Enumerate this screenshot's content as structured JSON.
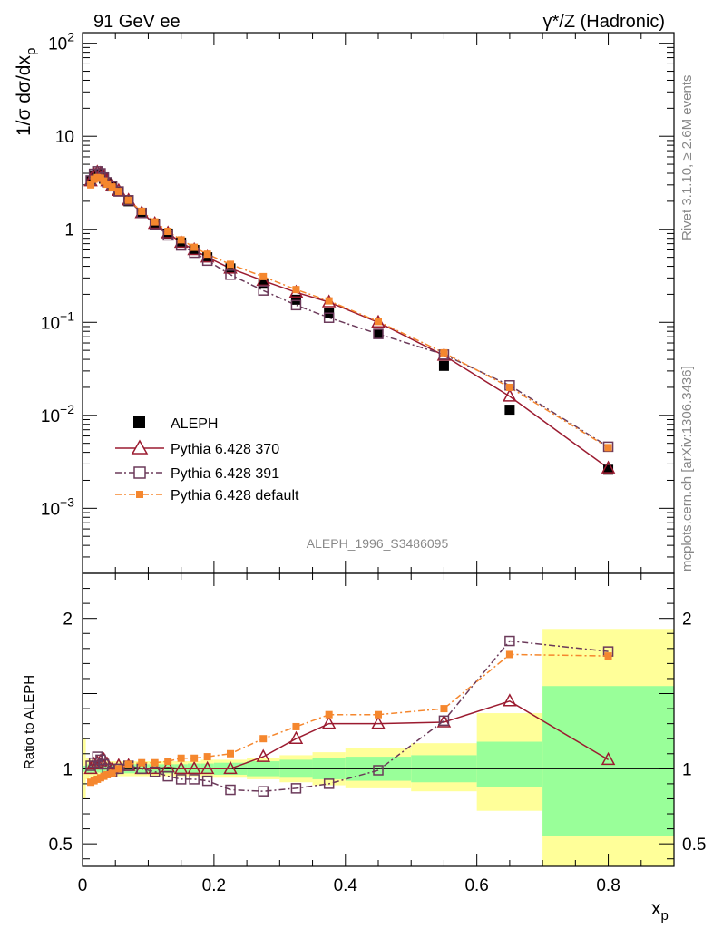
{
  "chart_data": {
    "type": "line",
    "title_left": "91 GeV ee",
    "title_right": "γ*/Z (Hadronic)",
    "side_label_top": "Rivet 3.1.10, ≥ 2.6M events",
    "side_label_bottom": "mcplots.cern.ch [arXiv:1306.3436]",
    "analysis_label": "ALEPH_1996_S3486095",
    "xlabel": "x",
    "xlabel_sub": "p",
    "ylabel_main": "1/σ dσ/dx",
    "ylabel_main_sub": "p",
    "ylabel_ratio": "Ratio to ALEPH",
    "xlim": [
      0,
      0.9
    ],
    "ylim_main_log": [
      0.0002,
      130
    ],
    "ylim_ratio": [
      0.35,
      2.3
    ],
    "x_ticks": [
      "0",
      "0.2",
      "0.4",
      "0.6",
      "0.8"
    ],
    "y_ticks_main": [
      {
        "value": 100,
        "base": "10",
        "exp": "2"
      },
      {
        "value": 10,
        "base": "10",
        "exp": ""
      },
      {
        "value": 1,
        "base": "1",
        "exp": ""
      },
      {
        "value": 0.1,
        "base": "10",
        "exp": "−1"
      },
      {
        "value": 0.01,
        "base": "10",
        "exp": "−2"
      },
      {
        "value": 0.001,
        "base": "10",
        "exp": "−3"
      }
    ],
    "y_ticks_ratio": [
      "0.5",
      "1",
      "2"
    ],
    "legend": [
      {
        "key": "aleph",
        "label": "ALEPH"
      },
      {
        "key": "p370",
        "label": "Pythia 6.428 370"
      },
      {
        "key": "p391",
        "label": "Pythia 6.428 391"
      },
      {
        "key": "pdef",
        "label": "Pythia 6.428 default"
      }
    ],
    "bins": [
      0,
      0.005,
      0.01,
      0.015,
      0.02,
      0.025,
      0.03,
      0.035,
      0.04,
      0.05,
      0.06,
      0.08,
      0.1,
      0.12,
      0.14,
      0.16,
      0.18,
      0.2,
      0.25,
      0.3,
      0.35,
      0.4,
      0.5,
      0.6,
      0.7,
      0.9
    ],
    "band_inner": [
      [
        0.98,
        1.02
      ],
      [
        0.97,
        1.03
      ],
      [
        0.97,
        1.03
      ],
      [
        0.975,
        1.025
      ],
      [
        0.975,
        1.025
      ],
      [
        0.975,
        1.025
      ],
      [
        0.975,
        1.025
      ],
      [
        0.975,
        1.025
      ],
      [
        0.975,
        1.025
      ],
      [
        0.975,
        1.025
      ],
      [
        0.97,
        1.03
      ],
      [
        0.97,
        1.03
      ],
      [
        0.97,
        1.03
      ],
      [
        0.97,
        1.03
      ],
      [
        0.97,
        1.03
      ],
      [
        0.965,
        1.035
      ],
      [
        0.965,
        1.035
      ],
      [
        0.96,
        1.04
      ],
      [
        0.95,
        1.05
      ],
      [
        0.94,
        1.06
      ],
      [
        0.93,
        1.07
      ],
      [
        0.92,
        1.08
      ],
      [
        0.91,
        1.09
      ],
      [
        0.88,
        1.18
      ],
      [
        0.55,
        1.55
      ]
    ],
    "band_outer": [
      [
        0.8,
        1.2
      ],
      [
        0.93,
        1.07
      ],
      [
        0.94,
        1.06
      ],
      [
        0.95,
        1.05
      ],
      [
        0.95,
        1.05
      ],
      [
        0.95,
        1.05
      ],
      [
        0.95,
        1.05
      ],
      [
        0.95,
        1.05
      ],
      [
        0.95,
        1.05
      ],
      [
        0.95,
        1.05
      ],
      [
        0.95,
        1.05
      ],
      [
        0.95,
        1.05
      ],
      [
        0.95,
        1.05
      ],
      [
        0.95,
        1.05
      ],
      [
        0.95,
        1.05
      ],
      [
        0.95,
        1.05
      ],
      [
        0.94,
        1.06
      ],
      [
        0.94,
        1.06
      ],
      [
        0.93,
        1.07
      ],
      [
        0.91,
        1.09
      ],
      [
        0.89,
        1.11
      ],
      [
        0.87,
        1.14
      ],
      [
        0.85,
        1.17
      ],
      [
        0.72,
        1.37
      ],
      [
        0.35,
        1.93
      ]
    ],
    "series": [
      {
        "key": "aleph",
        "name": "ALEPH",
        "color": "#000000",
        "marker": "filled-square",
        "x": [
          0.0125,
          0.0175,
          0.0225,
          0.0275,
          0.0325,
          0.0375,
          0.045,
          0.055,
          0.07,
          0.09,
          0.11,
          0.13,
          0.15,
          0.17,
          0.19,
          0.225,
          0.275,
          0.325,
          0.375,
          0.45,
          0.55,
          0.65,
          0.8
        ],
        "y": [
          3.3,
          3.8,
          3.95,
          3.8,
          3.5,
          3.2,
          2.95,
          2.55,
          2.0,
          1.5,
          1.15,
          0.9,
          0.72,
          0.6,
          0.5,
          0.38,
          0.26,
          0.175,
          0.125,
          0.075,
          0.034,
          0.0115,
          0.0026
        ]
      },
      {
        "key": "p370",
        "name": "Pythia 6.428 370",
        "color": "#9b1b30",
        "marker": "open-triangle",
        "line": "solid",
        "x": [
          0.0125,
          0.0175,
          0.0225,
          0.0275,
          0.0325,
          0.0375,
          0.045,
          0.055,
          0.07,
          0.09,
          0.11,
          0.13,
          0.15,
          0.17,
          0.19,
          0.225,
          0.275,
          0.325,
          0.375,
          0.45,
          0.55,
          0.65,
          0.8
        ],
        "y": [
          3.3,
          3.9,
          4.1,
          4.0,
          3.7,
          3.3,
          2.95,
          2.6,
          2.05,
          1.5,
          1.15,
          0.91,
          0.72,
          0.6,
          0.5,
          0.38,
          0.28,
          0.21,
          0.165,
          0.1,
          0.044,
          0.016,
          0.0027
        ]
      },
      {
        "key": "p391",
        "name": "Pythia 6.428 391",
        "color": "#6b3a5a",
        "marker": "open-square",
        "line": "dashdot",
        "x": [
          0.0125,
          0.0175,
          0.0225,
          0.0275,
          0.0325,
          0.0375,
          0.045,
          0.055,
          0.07,
          0.09,
          0.11,
          0.13,
          0.15,
          0.17,
          0.19,
          0.225,
          0.275,
          0.325,
          0.375,
          0.45,
          0.55,
          0.65,
          0.8
        ],
        "y": [
          3.35,
          3.95,
          4.2,
          4.0,
          3.6,
          3.2,
          2.9,
          2.55,
          2.05,
          1.5,
          1.13,
          0.86,
          0.67,
          0.56,
          0.46,
          0.325,
          0.22,
          0.153,
          0.112,
          0.075,
          0.045,
          0.021,
          0.0046
        ]
      },
      {
        "key": "pdef",
        "name": "Pythia 6.428 default",
        "color": "#f5872e",
        "marker": "filled-square-small",
        "line": "dashdot",
        "x": [
          0.0125,
          0.0175,
          0.0225,
          0.0275,
          0.0325,
          0.0375,
          0.045,
          0.055,
          0.07,
          0.09,
          0.11,
          0.13,
          0.15,
          0.17,
          0.19,
          0.225,
          0.275,
          0.325,
          0.375,
          0.45,
          0.55,
          0.65,
          0.8
        ],
        "y": [
          3.0,
          3.45,
          3.6,
          3.55,
          3.3,
          3.05,
          2.85,
          2.55,
          2.05,
          1.56,
          1.2,
          0.95,
          0.77,
          0.64,
          0.54,
          0.42,
          0.31,
          0.225,
          0.17,
          0.102,
          0.047,
          0.02,
          0.0045
        ]
      }
    ],
    "ratio_series": [
      {
        "key": "p370",
        "y": [
          1.0,
          1.03,
          1.04,
          1.05,
          1.06,
          1.03,
          1.0,
          1.02,
          1.02,
          1.0,
          1.0,
          1.01,
          1.0,
          1.0,
          1.0,
          1.0,
          1.08,
          1.2,
          1.3,
          1.3,
          1.31,
          1.45,
          1.06
        ]
      },
      {
        "key": "p391",
        "y": [
          1.02,
          1.04,
          1.08,
          1.06,
          1.03,
          1.0,
          0.98,
          1.0,
          1.02,
          1.0,
          0.98,
          0.95,
          0.93,
          0.93,
          0.92,
          0.86,
          0.85,
          0.87,
          0.9,
          0.99,
          1.32,
          1.85,
          1.78
        ]
      },
      {
        "key": "pdef",
        "y": [
          0.91,
          0.92,
          0.93,
          0.94,
          0.95,
          0.96,
          0.97,
          1.0,
          1.03,
          1.04,
          1.04,
          1.05,
          1.07,
          1.07,
          1.08,
          1.1,
          1.2,
          1.28,
          1.36,
          1.36,
          1.4,
          1.76,
          1.75
        ]
      }
    ]
  }
}
